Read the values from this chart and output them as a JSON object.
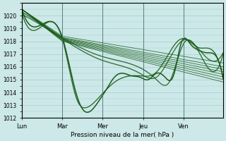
{
  "title": "",
  "xlabel": "Pression niveau de la mer( hPa )",
  "ylabel": "",
  "ylim": [
    1012,
    1021
  ],
  "yticks": [
    1012,
    1013,
    1014,
    1015,
    1016,
    1017,
    1018,
    1019,
    1020
  ],
  "day_labels": [
    "Lun",
    "Mar",
    "Mer",
    "Jeu",
    "Ven"
  ],
  "day_positions": [
    0,
    48,
    96,
    144,
    192
  ],
  "total_points": 240,
  "background_color": "#cce8e8",
  "grid_color": "#aacccc",
  "line_color": "#1a5c1a",
  "line_color2": "#2d7a2d"
}
